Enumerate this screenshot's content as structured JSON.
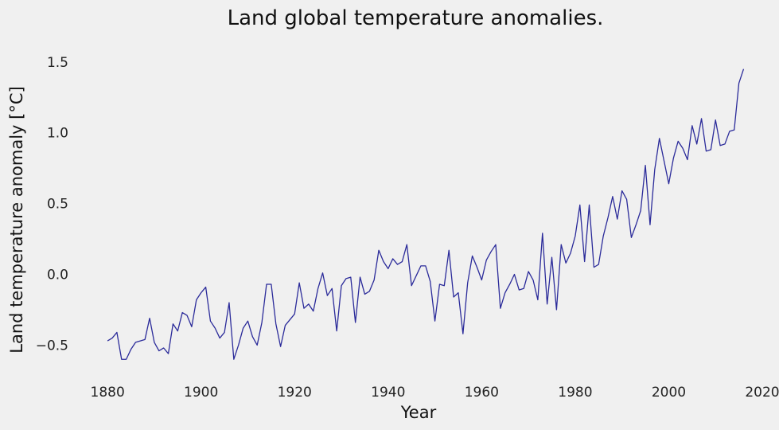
{
  "chart_data": {
    "type": "line",
    "title": "Land global temperature anomalies.",
    "xlabel": "Year",
    "ylabel": "Land temperature anomaly [°C]",
    "xlim": [
      1873,
      2020
    ],
    "ylim": [
      -0.7,
      1.6
    ],
    "xticks": [
      1880,
      1900,
      1920,
      1940,
      1960,
      1980,
      2000,
      2020
    ],
    "xtick_labels": [
      "1880",
      "1900",
      "1920",
      "1940",
      "1960",
      "1980",
      "2000",
      "2020"
    ],
    "yticks": [
      -0.5,
      0.0,
      0.5,
      1.0,
      1.5
    ],
    "ytick_labels": [
      "−0.5",
      "0.0",
      "0.5",
      "1.0",
      "1.5"
    ],
    "grid": false,
    "line_color": "#2b2b9a",
    "series": [
      {
        "x": [
          1880,
          1881,
          1882,
          1883,
          1884,
          1885,
          1886,
          1887,
          1888,
          1889,
          1890,
          1891,
          1892,
          1893,
          1894,
          1895,
          1896,
          1897,
          1898,
          1899,
          1900,
          1901,
          1902,
          1903,
          1904,
          1905,
          1906,
          1907,
          1908,
          1909,
          1910,
          1911,
          1912,
          1913,
          1914,
          1915,
          1916,
          1917,
          1918,
          1919,
          1920,
          1921,
          1922,
          1923,
          1924,
          1925,
          1926,
          1927,
          1928,
          1929,
          1930,
          1931,
          1932,
          1933,
          1934,
          1935,
          1936,
          1937,
          1938,
          1939,
          1940,
          1941,
          1942,
          1943,
          1944,
          1945,
          1946,
          1947,
          1948,
          1949,
          1950,
          1951,
          1952,
          1953,
          1954,
          1955,
          1956,
          1957,
          1958,
          1959,
          1960,
          1961,
          1962,
          1963,
          1964,
          1965,
          1966,
          1967,
          1968,
          1969,
          1970,
          1971,
          1972,
          1973,
          1974,
          1975,
          1976,
          1977,
          1978,
          1979,
          1980,
          1981,
          1982,
          1983,
          1984,
          1985,
          1986,
          1987,
          1988,
          1989,
          1990,
          1991,
          1992,
          1993,
          1994,
          1995,
          1996,
          1997,
          1998,
          1999,
          2000,
          2001,
          2002,
          2003,
          2004,
          2005,
          2006,
          2007,
          2008,
          2009,
          2010,
          2011,
          2012,
          2013,
          2014,
          2015,
          2016
        ],
        "values": [
          -0.47,
          -0.45,
          -0.41,
          -0.6,
          -0.6,
          -0.53,
          -0.48,
          -0.47,
          -0.46,
          -0.31,
          -0.48,
          -0.54,
          -0.52,
          -0.56,
          -0.35,
          -0.4,
          -0.27,
          -0.29,
          -0.37,
          -0.18,
          -0.13,
          -0.09,
          -0.33,
          -0.38,
          -0.45,
          -0.41,
          -0.2,
          -0.6,
          -0.5,
          -0.38,
          -0.33,
          -0.44,
          -0.5,
          -0.34,
          -0.07,
          -0.07,
          -0.35,
          -0.51,
          -0.36,
          -0.32,
          -0.28,
          -0.06,
          -0.24,
          -0.21,
          -0.26,
          -0.1,
          0.01,
          -0.15,
          -0.1,
          -0.4,
          -0.08,
          -0.03,
          -0.02,
          -0.34,
          -0.02,
          -0.14,
          -0.12,
          -0.04,
          0.17,
          0.09,
          0.04,
          0.11,
          0.07,
          0.09,
          0.21,
          -0.08,
          -0.01,
          0.06,
          0.06,
          -0.05,
          -0.33,
          -0.07,
          -0.08,
          0.17,
          -0.16,
          -0.13,
          -0.42,
          -0.06,
          0.13,
          0.05,
          -0.04,
          0.1,
          0.16,
          0.21,
          -0.24,
          -0.13,
          -0.07,
          0.0,
          -0.11,
          -0.1,
          0.02,
          -0.04,
          -0.18,
          0.29,
          -0.21,
          0.12,
          -0.25,
          0.21,
          0.08,
          0.15,
          0.27,
          0.49,
          0.09,
          0.49,
          0.05,
          0.07,
          0.27,
          0.4,
          0.55,
          0.39,
          0.59,
          0.53,
          0.26,
          0.35,
          0.45,
          0.77,
          0.35,
          0.74,
          0.96,
          0.8,
          0.64,
          0.82,
          0.94,
          0.89,
          0.81,
          1.05,
          0.92,
          1.1,
          0.87,
          0.88,
          1.09,
          0.91,
          0.92,
          1.01,
          1.02,
          1.35,
          1.45
        ]
      }
    ]
  }
}
